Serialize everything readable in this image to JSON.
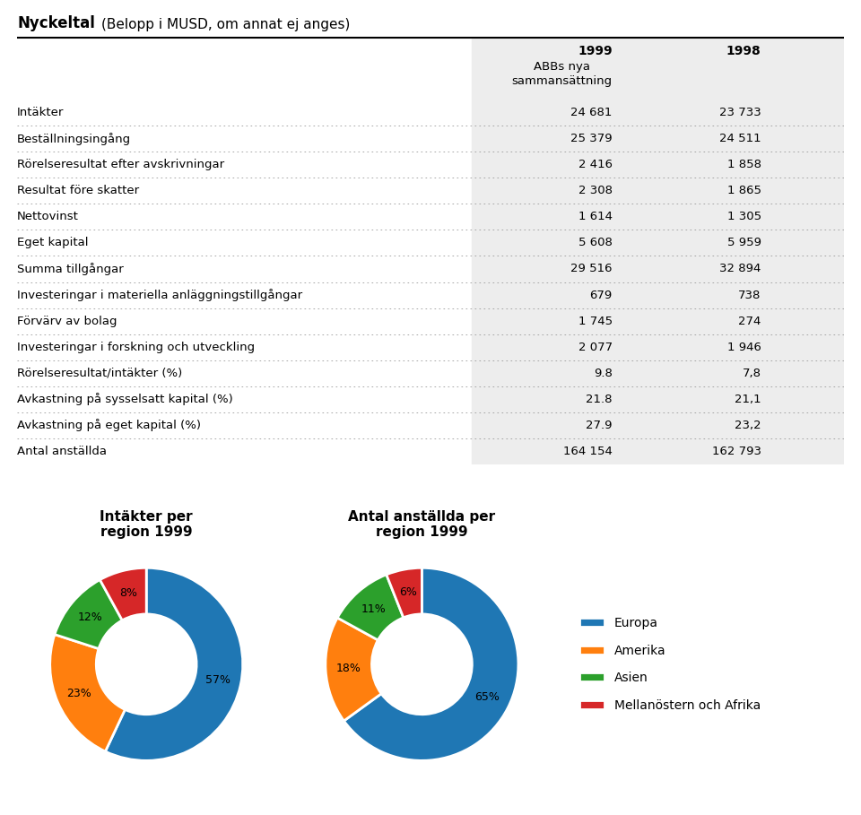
{
  "chart_data": [
    {
      "type": "table",
      "title": "Nyckeltal",
      "subtitle": "(Belopp i MUSD, om annat ej anges)",
      "annotations": [
        "ABBs nya\nsammansättning"
      ],
      "categories": [
        "Intäkter",
        "Beställningsingång",
        "Rörelseresultat efter avskrivningar",
        "Resultat före skatter",
        "Nettovinst",
        "Eget kapital",
        "Summa tillgångar",
        "Investeringar i materiella anläggningstillgångar",
        "Förvärv av bolag",
        "Investeringar i forskning och utveckling",
        "Rörelseresultat/intäkter (%)",
        "Avkastning på sysselsatt kapital (%)",
        "Avkastning på eget kapital (%)",
        "Antal anställda"
      ],
      "series": [
        {
          "name": "1999",
          "values": [
            24681,
            25379,
            2416,
            2308,
            1614,
            5608,
            29516,
            679,
            1745,
            2077,
            9.8,
            21.8,
            27.9,
            164154
          ],
          "value_labels": [
            "24 681",
            "25 379",
            "2 416",
            "2 308",
            "1 614",
            "5 608",
            "29 516",
            "679",
            "1 745",
            "2 077",
            "9.8",
            "21.8",
            "27.9",
            "164 154"
          ]
        },
        {
          "name": "1998",
          "values": [
            23733,
            24511,
            1858,
            1865,
            1305,
            5959,
            32894,
            738,
            274,
            1946,
            7.8,
            21.1,
            23.2,
            162793
          ],
          "value_labels": [
            "23 733",
            "24 511",
            "1 858",
            "1 865",
            "1 305",
            "5 959",
            "32 894",
            "738",
            "274",
            "1 946",
            "7,8",
            "21,1",
            "23,2",
            "162 793"
          ]
        }
      ]
    },
    {
      "type": "pie",
      "title": "Intäkter per\nregion 1999",
      "categories": [
        "Europa",
        "Amerika",
        "Asien",
        "Mellanöstern och Afrika"
      ],
      "values": [
        57,
        23,
        12,
        8
      ],
      "value_labels": [
        "57%",
        "23%",
        "12%",
        "8%"
      ],
      "data_labels": true
    },
    {
      "type": "pie",
      "title": "Antal anställda per\nregion 1999",
      "categories": [
        "Europa",
        "Amerika",
        "Asien",
        "Mellanöstern och Afrika"
      ],
      "values": [
        65,
        18,
        11,
        6
      ],
      "value_labels": [
        "65%",
        "18%",
        "11%",
        "6%"
      ],
      "data_labels": true,
      "legend": "center left"
    }
  ]
}
